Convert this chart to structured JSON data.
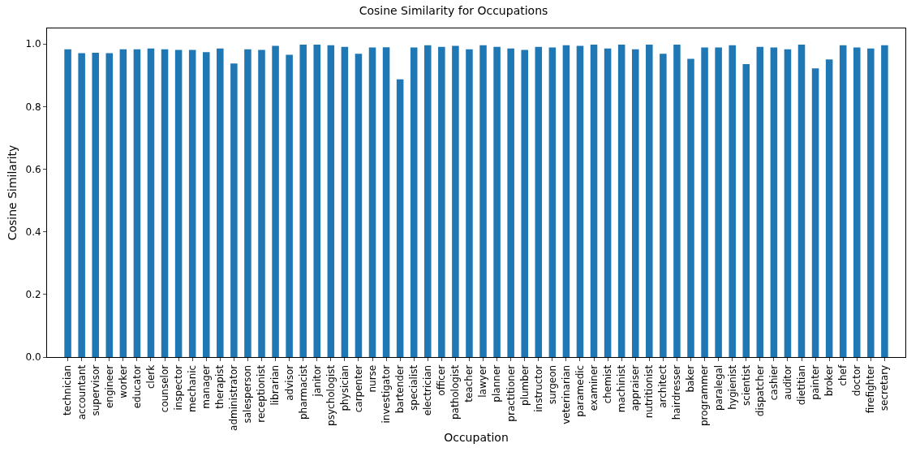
{
  "chart_data": {
    "type": "bar",
    "title": "Cosine Similarity for Occupations",
    "xlabel": "Occupation",
    "ylabel": "Cosine Similarity",
    "categories": [
      "technician",
      "accountant",
      "supervisor",
      "engineer",
      "worker",
      "educator",
      "clerk",
      "counselor",
      "inspector",
      "mechanic",
      "manager",
      "therapist",
      "administrator",
      "salesperson",
      "receptionist",
      "librarian",
      "advisor",
      "pharmacist",
      "janitor",
      "psychologist",
      "physician",
      "carpenter",
      "nurse",
      "investigator",
      "bartender",
      "specialist",
      "electrician",
      "officer",
      "pathologist",
      "teacher",
      "lawyer",
      "planner",
      "practitioner",
      "plumber",
      "instructor",
      "surgeon",
      "veterinarian",
      "paramedic",
      "examiner",
      "chemist",
      "machinist",
      "appraiser",
      "nutritionist",
      "architect",
      "hairdresser",
      "baker",
      "programmer",
      "paralegal",
      "hygienist",
      "scientist",
      "dispatcher",
      "cashier",
      "auditor",
      "dietitian",
      "painter",
      "broker",
      "chef",
      "doctor",
      "firefighter",
      "secretary"
    ],
    "values": [
      0.983,
      0.971,
      0.972,
      0.971,
      0.983,
      0.983,
      0.986,
      0.983,
      0.981,
      0.981,
      0.974,
      0.986,
      0.938,
      0.983,
      0.981,
      0.994,
      0.966,
      0.998,
      0.998,
      0.996,
      0.991,
      0.969,
      0.989,
      0.99,
      0.887,
      0.989,
      0.996,
      0.991,
      0.994,
      0.983,
      0.996,
      0.991,
      0.986,
      0.981,
      0.991,
      0.989,
      0.996,
      0.994,
      0.998,
      0.986,
      0.998,
      0.983,
      0.998,
      0.969,
      0.998,
      0.953,
      0.989,
      0.989,
      0.996,
      0.936,
      0.991,
      0.989,
      0.983,
      0.998,
      0.922,
      0.951,
      0.996,
      0.989,
      0.986,
      0.996
    ],
    "color": "#1f77b4",
    "ylim": [
      0,
      1.05
    ],
    "yticks": [
      {
        "value": 0,
        "label": "0.0"
      },
      {
        "value": 0.2,
        "label": "0.2"
      },
      {
        "value": 0.4,
        "label": "0.4"
      },
      {
        "value": 0.6,
        "label": "0.6"
      },
      {
        "value": 0.8,
        "label": "0.8"
      },
      {
        "value": 1,
        "label": "1.0"
      }
    ],
    "grid": false
  }
}
